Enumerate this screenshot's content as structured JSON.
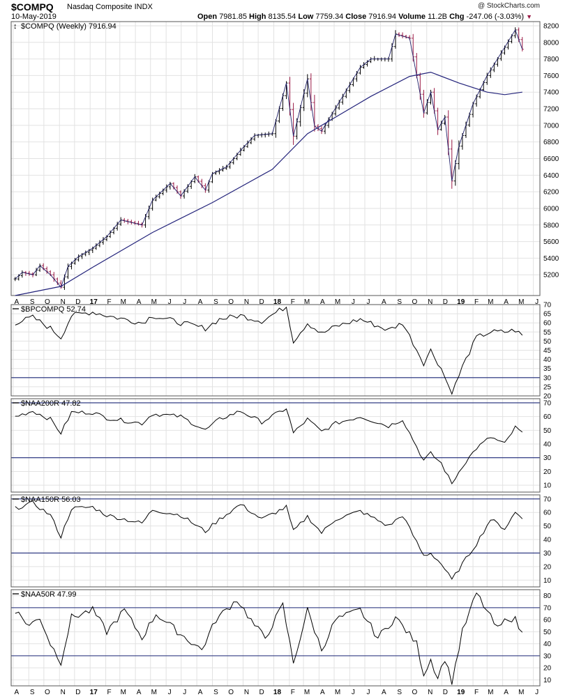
{
  "header": {
    "symbol": "$COMPQ",
    "description": "Nasdaq Composite INDX",
    "date": "10-May-2019",
    "credit": "@ StockCharts.com",
    "open_label": "Open",
    "open": "7981.85",
    "high_label": "High",
    "high": "8135.54",
    "low_label": "Low",
    "low": "7759.34",
    "close_label": "Close",
    "close": "7916.94",
    "volume_label": "Volume",
    "volume": "11.2B",
    "chg_label": "Chg",
    "chg": "-247.06 (-3.03%)"
  },
  "colors": {
    "price_up": "#000000",
    "price_down": "#9a1a45",
    "ma": "#22227a",
    "grid": "#e2e2e2",
    "refline": "#1e2a7a"
  },
  "chart_data": [
    {
      "type": "ohlc",
      "title": "$COMPQ (Weekly) 7916.94",
      "interval": "weekly",
      "x_range": [
        "2016-08-05",
        "2019-05-10"
      ],
      "ylim": [
        4950,
        8250
      ],
      "yticks": [
        5200,
        5400,
        5600,
        5800,
        6000,
        6200,
        6400,
        6600,
        6800,
        7000,
        7200,
        7400,
        7600,
        7800,
        8000,
        8200
      ],
      "xtick_labels": [
        "A",
        "S",
        "O",
        "N",
        "D",
        "17",
        "F",
        "M",
        "A",
        "M",
        "J",
        "J",
        "A",
        "S",
        "O",
        "N",
        "D",
        "18",
        "F",
        "M",
        "A",
        "M",
        "J",
        "J",
        "A",
        "S",
        "O",
        "N",
        "D",
        "19",
        "F",
        "M",
        "A",
        "M",
        "J"
      ],
      "close_anchors": [
        {
          "date": "2016-08-05",
          "close": 5150
        },
        {
          "date": "2016-08-19",
          "close": 5230
        },
        {
          "date": "2016-09-09",
          "close": 5200
        },
        {
          "date": "2016-09-23",
          "close": 5310
        },
        {
          "date": "2016-10-14",
          "close": 5200
        },
        {
          "date": "2016-11-04",
          "close": 5050
        },
        {
          "date": "2016-11-18",
          "close": 5300
        },
        {
          "date": "2016-12-09",
          "close": 5420
        },
        {
          "date": "2017-01-06",
          "close": 5520
        },
        {
          "date": "2017-02-03",
          "close": 5660
        },
        {
          "date": "2017-03-03",
          "close": 5860
        },
        {
          "date": "2017-04-14",
          "close": 5800
        },
        {
          "date": "2017-05-05",
          "close": 6100
        },
        {
          "date": "2017-06-09",
          "close": 6300
        },
        {
          "date": "2017-06-30",
          "close": 6150
        },
        {
          "date": "2017-07-28",
          "close": 6380
        },
        {
          "date": "2017-08-18",
          "close": 6220
        },
        {
          "date": "2017-09-01",
          "close": 6420
        },
        {
          "date": "2017-09-29",
          "close": 6500
        },
        {
          "date": "2017-10-27",
          "close": 6700
        },
        {
          "date": "2017-11-24",
          "close": 6880
        },
        {
          "date": "2017-12-29",
          "close": 6900
        },
        {
          "date": "2018-01-26",
          "close": 7510
        },
        {
          "date": "2018-02-09",
          "close": 6870
        },
        {
          "date": "2018-03-09",
          "close": 7560
        },
        {
          "date": "2018-03-23",
          "close": 6990
        },
        {
          "date": "2018-04-06",
          "close": 6930
        },
        {
          "date": "2018-05-04",
          "close": 7210
        },
        {
          "date": "2018-06-22",
          "close": 7700
        },
        {
          "date": "2018-07-13",
          "close": 7800
        },
        {
          "date": "2018-08-17",
          "close": 7800
        },
        {
          "date": "2018-08-31",
          "close": 8100
        },
        {
          "date": "2018-09-28",
          "close": 8050
        },
        {
          "date": "2018-10-26",
          "close": 7150
        },
        {
          "date": "2018-11-09",
          "close": 7400
        },
        {
          "date": "2018-11-23",
          "close": 6950
        },
        {
          "date": "2018-12-07",
          "close": 7100
        },
        {
          "date": "2018-12-21",
          "close": 6330
        },
        {
          "date": "2019-01-04",
          "close": 6750
        },
        {
          "date": "2019-02-01",
          "close": 7260
        },
        {
          "date": "2019-03-01",
          "close": 7600
        },
        {
          "date": "2019-04-05",
          "close": 7940
        },
        {
          "date": "2019-04-26",
          "close": 8150
        },
        {
          "date": "2019-05-10",
          "close": 7917
        }
      ],
      "moving_average": [
        {
          "date": "2016-08-05",
          "value": 4950
        },
        {
          "date": "2016-11-04",
          "value": 5060
        },
        {
          "date": "2017-01-06",
          "value": 5290
        },
        {
          "date": "2017-05-05",
          "value": 5710
        },
        {
          "date": "2017-09-01",
          "value": 6070
        },
        {
          "date": "2017-12-29",
          "value": 6470
        },
        {
          "date": "2018-03-09",
          "value": 6900
        },
        {
          "date": "2018-07-13",
          "value": 7350
        },
        {
          "date": "2018-09-28",
          "value": 7590
        },
        {
          "date": "2018-11-09",
          "value": 7640
        },
        {
          "date": "2019-01-04",
          "value": 7510
        },
        {
          "date": "2019-03-01",
          "value": 7400
        },
        {
          "date": "2019-04-05",
          "value": 7370
        },
        {
          "date": "2019-05-10",
          "value": 7400
        }
      ]
    },
    {
      "type": "line",
      "title": "$BPCOMPQ 52.74",
      "ylim": [
        20,
        70
      ],
      "yticks": [
        20,
        25,
        30,
        35,
        40,
        45,
        50,
        55,
        60,
        65,
        70
      ],
      "reference_lines": [
        70,
        30
      ],
      "points": [
        {
          "date": "2016-08-05",
          "value": 60
        },
        {
          "date": "2016-09-09",
          "value": 63
        },
        {
          "date": "2016-10-14",
          "value": 57
        },
        {
          "date": "2016-11-04",
          "value": 52
        },
        {
          "date": "2016-11-25",
          "value": 64
        },
        {
          "date": "2017-01-06",
          "value": 66
        },
        {
          "date": "2017-02-03",
          "value": 64
        },
        {
          "date": "2017-04-14",
          "value": 60
        },
        {
          "date": "2017-05-05",
          "value": 64
        },
        {
          "date": "2017-06-30",
          "value": 60
        },
        {
          "date": "2017-08-18",
          "value": 57
        },
        {
          "date": "2017-09-15",
          "value": 62
        },
        {
          "date": "2017-10-27",
          "value": 64
        },
        {
          "date": "2017-12-08",
          "value": 61
        },
        {
          "date": "2018-01-26",
          "value": 69
        },
        {
          "date": "2018-02-09",
          "value": 50
        },
        {
          "date": "2018-03-09",
          "value": 60
        },
        {
          "date": "2018-04-06",
          "value": 54
        },
        {
          "date": "2018-05-04",
          "value": 58
        },
        {
          "date": "2018-06-22",
          "value": 62
        },
        {
          "date": "2018-08-17",
          "value": 56
        },
        {
          "date": "2018-09-14",
          "value": 60
        },
        {
          "date": "2018-10-26",
          "value": 38
        },
        {
          "date": "2018-11-09",
          "value": 45
        },
        {
          "date": "2018-11-30",
          "value": 35
        },
        {
          "date": "2018-12-21",
          "value": 21
        },
        {
          "date": "2019-01-11",
          "value": 36
        },
        {
          "date": "2019-02-08",
          "value": 52
        },
        {
          "date": "2019-03-08",
          "value": 55
        },
        {
          "date": "2019-04-05",
          "value": 55
        },
        {
          "date": "2019-04-26",
          "value": 56
        },
        {
          "date": "2019-05-10",
          "value": 53
        }
      ]
    },
    {
      "type": "line",
      "title": "$NAA200R 47.82",
      "ylim": [
        5,
        73
      ],
      "yticks": [
        10,
        20,
        30,
        40,
        50,
        60,
        70
      ],
      "reference_lines": [
        70,
        30
      ],
      "points": [
        {
          "date": "2016-08-05",
          "value": 60
        },
        {
          "date": "2016-09-09",
          "value": 64
        },
        {
          "date": "2016-10-14",
          "value": 58
        },
        {
          "date": "2016-11-04",
          "value": 48
        },
        {
          "date": "2016-11-25",
          "value": 63
        },
        {
          "date": "2017-01-06",
          "value": 63
        },
        {
          "date": "2017-02-03",
          "value": 59
        },
        {
          "date": "2017-04-14",
          "value": 55
        },
        {
          "date": "2017-05-05",
          "value": 62
        },
        {
          "date": "2017-06-30",
          "value": 60
        },
        {
          "date": "2017-08-18",
          "value": 50
        },
        {
          "date": "2017-09-15",
          "value": 58
        },
        {
          "date": "2017-10-27",
          "value": 64
        },
        {
          "date": "2017-12-08",
          "value": 56
        },
        {
          "date": "2018-01-26",
          "value": 66
        },
        {
          "date": "2018-02-09",
          "value": 48
        },
        {
          "date": "2018-03-09",
          "value": 58
        },
        {
          "date": "2018-04-06",
          "value": 49
        },
        {
          "date": "2018-05-04",
          "value": 55
        },
        {
          "date": "2018-06-22",
          "value": 60
        },
        {
          "date": "2018-08-17",
          "value": 53
        },
        {
          "date": "2018-09-14",
          "value": 58
        },
        {
          "date": "2018-10-26",
          "value": 28
        },
        {
          "date": "2018-11-09",
          "value": 33
        },
        {
          "date": "2018-11-30",
          "value": 26
        },
        {
          "date": "2018-12-21",
          "value": 11
        },
        {
          "date": "2019-01-11",
          "value": 24
        },
        {
          "date": "2019-02-08",
          "value": 37
        },
        {
          "date": "2019-03-08",
          "value": 45
        },
        {
          "date": "2019-04-05",
          "value": 40
        },
        {
          "date": "2019-04-26",
          "value": 52
        },
        {
          "date": "2019-05-10",
          "value": 48
        }
      ]
    },
    {
      "type": "line",
      "title": "$NAA150R 56.03",
      "ylim": [
        5,
        73
      ],
      "yticks": [
        10,
        20,
        30,
        40,
        50,
        60,
        70
      ],
      "reference_lines": [
        70,
        30
      ],
      "points": [
        {
          "date": "2016-08-05",
          "value": 63
        },
        {
          "date": "2016-09-09",
          "value": 67
        },
        {
          "date": "2016-10-14",
          "value": 58
        },
        {
          "date": "2016-11-04",
          "value": 42
        },
        {
          "date": "2016-11-25",
          "value": 63
        },
        {
          "date": "2017-01-06",
          "value": 64
        },
        {
          "date": "2017-02-03",
          "value": 58
        },
        {
          "date": "2017-04-14",
          "value": 52
        },
        {
          "date": "2017-05-05",
          "value": 62
        },
        {
          "date": "2017-06-30",
          "value": 58
        },
        {
          "date": "2017-08-18",
          "value": 46
        },
        {
          "date": "2017-09-15",
          "value": 55
        },
        {
          "date": "2017-10-27",
          "value": 66
        },
        {
          "date": "2017-12-08",
          "value": 55
        },
        {
          "date": "2018-01-26",
          "value": 64
        },
        {
          "date": "2018-02-09",
          "value": 46
        },
        {
          "date": "2018-03-09",
          "value": 57
        },
        {
          "date": "2018-04-06",
          "value": 45
        },
        {
          "date": "2018-05-04",
          "value": 55
        },
        {
          "date": "2018-06-22",
          "value": 61
        },
        {
          "date": "2018-08-17",
          "value": 50
        },
        {
          "date": "2018-09-14",
          "value": 58
        },
        {
          "date": "2018-10-26",
          "value": 28
        },
        {
          "date": "2018-11-09",
          "value": 30
        },
        {
          "date": "2018-11-30",
          "value": 22
        },
        {
          "date": "2018-12-21",
          "value": 10
        },
        {
          "date": "2019-01-11",
          "value": 22
        },
        {
          "date": "2019-02-08",
          "value": 37
        },
        {
          "date": "2019-03-08",
          "value": 55
        },
        {
          "date": "2019-04-05",
          "value": 48
        },
        {
          "date": "2019-04-26",
          "value": 60
        },
        {
          "date": "2019-05-10",
          "value": 56
        }
      ]
    },
    {
      "type": "line",
      "title": "$NAA50R 47.99",
      "ylim": [
        5,
        85
      ],
      "yticks": [
        10,
        20,
        30,
        40,
        50,
        60,
        70,
        80
      ],
      "reference_lines": [
        70,
        30
      ],
      "points": [
        {
          "date": "2016-08-05",
          "value": 68
        },
        {
          "date": "2016-09-02",
          "value": 55
        },
        {
          "date": "2016-09-23",
          "value": 62
        },
        {
          "date": "2016-10-14",
          "value": 40
        },
        {
          "date": "2016-11-04",
          "value": 25
        },
        {
          "date": "2016-11-25",
          "value": 62
        },
        {
          "date": "2017-01-06",
          "value": 68
        },
        {
          "date": "2017-02-03",
          "value": 50
        },
        {
          "date": "2017-03-10",
          "value": 68
        },
        {
          "date": "2017-04-14",
          "value": 45
        },
        {
          "date": "2017-05-12",
          "value": 65
        },
        {
          "date": "2017-06-30",
          "value": 48
        },
        {
          "date": "2017-08-11",
          "value": 35
        },
        {
          "date": "2017-09-08",
          "value": 60
        },
        {
          "date": "2017-10-20",
          "value": 77
        },
        {
          "date": "2017-11-24",
          "value": 55
        },
        {
          "date": "2017-12-15",
          "value": 45
        },
        {
          "date": "2018-01-19",
          "value": 72
        },
        {
          "date": "2018-02-09",
          "value": 24
        },
        {
          "date": "2018-03-09",
          "value": 68
        },
        {
          "date": "2018-04-06",
          "value": 35
        },
        {
          "date": "2018-05-04",
          "value": 60
        },
        {
          "date": "2018-06-22",
          "value": 68
        },
        {
          "date": "2018-07-27",
          "value": 45
        },
        {
          "date": "2018-08-31",
          "value": 62
        },
        {
          "date": "2018-10-12",
          "value": 40
        },
        {
          "date": "2018-10-26",
          "value": 15
        },
        {
          "date": "2018-11-09",
          "value": 27
        },
        {
          "date": "2018-11-23",
          "value": 12
        },
        {
          "date": "2018-12-07",
          "value": 28
        },
        {
          "date": "2018-12-21",
          "value": 8
        },
        {
          "date": "2019-01-11",
          "value": 50
        },
        {
          "date": "2019-02-08",
          "value": 82
        },
        {
          "date": "2019-03-08",
          "value": 62
        },
        {
          "date": "2019-03-22",
          "value": 52
        },
        {
          "date": "2019-04-12",
          "value": 62
        },
        {
          "date": "2019-04-26",
          "value": 60
        },
        {
          "date": "2019-05-10",
          "value": 48
        }
      ]
    }
  ]
}
